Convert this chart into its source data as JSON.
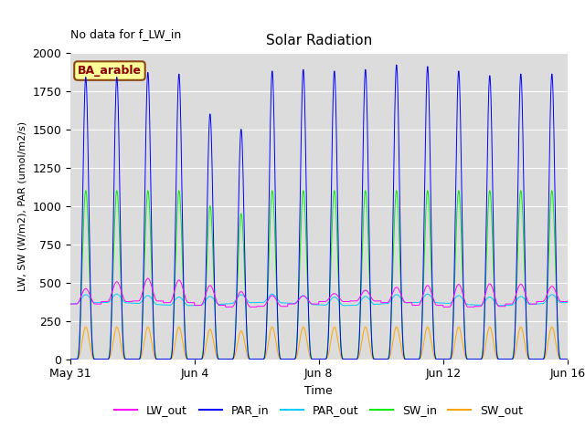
{
  "title": "Solar Radiation",
  "xlabel": "Time",
  "ylabel": "LW, SW (W/m2), PAR (umol/m2/s)",
  "top_left_text": "No data for f_LW_in",
  "legend_label": "BA_arable",
  "ylim": [
    0,
    2000
  ],
  "background_color": "#dcdcdc",
  "figure_background": "#ffffff",
  "legend_colors": {
    "LW_out": "#ff00ff",
    "PAR_in": "#0000ff",
    "PAR_out": "#00ccff",
    "SW_in": "#00ee00",
    "SW_out": "#ffa500"
  },
  "xtick_labels": [
    "May 31",
    "Jun 4",
    "Jun 8",
    "Jun 12",
    "Jun 16"
  ],
  "xtick_positions": [
    0,
    4,
    8,
    12,
    16
  ],
  "n_days": 17
}
